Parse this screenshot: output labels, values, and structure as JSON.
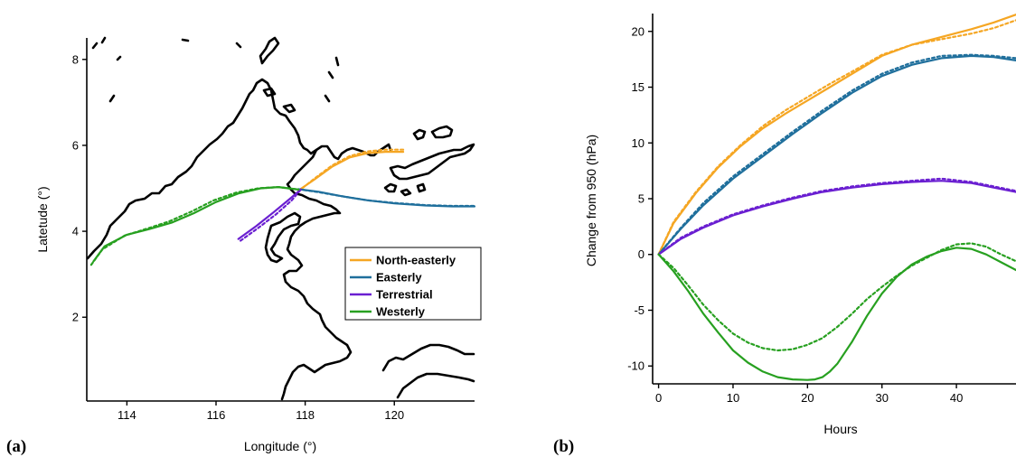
{
  "colors": {
    "North-easterly": "#f5a623",
    "Easterly": "#1f6f9c",
    "Terrestrial": "#6a1fd1",
    "Westerly": "#27a020",
    "coast": "#000000"
  },
  "chart_data": [
    {
      "type": "line",
      "panel_label": "(a)",
      "xlabel": "Longitude (°)",
      "ylabel": "Latetude (°)",
      "xlim": [
        113.1,
        121.8
      ],
      "ylim": [
        0.05,
        8.5
      ],
      "xticks": [
        114,
        116,
        118,
        120
      ],
      "yticks": [
        2,
        4,
        6,
        8
      ],
      "grid": false,
      "legend_position": "lower-right",
      "legend": [
        "North-easterly",
        "Easterly",
        "Terrestrial",
        "Westerly"
      ],
      "series": [
        {
          "name": "North-easterly",
          "style": "solid",
          "x": [
            117.85,
            118.2,
            118.6,
            119.0,
            119.4,
            119.8,
            120.2
          ],
          "y": [
            4.95,
            5.2,
            5.5,
            5.72,
            5.82,
            5.85,
            5.85
          ]
        },
        {
          "name": "North-easterly",
          "style": "dotted",
          "x": [
            117.85,
            118.2,
            118.6,
            119.0,
            119.4,
            119.8,
            120.2
          ],
          "y": [
            4.93,
            5.22,
            5.53,
            5.75,
            5.86,
            5.9,
            5.9
          ]
        },
        {
          "name": "Easterly",
          "style": "solid",
          "x": [
            117.85,
            118.3,
            118.8,
            119.4,
            120.0,
            120.7,
            121.3,
            121.8
          ],
          "y": [
            4.98,
            4.92,
            4.82,
            4.72,
            4.65,
            4.6,
            4.58,
            4.58
          ]
        },
        {
          "name": "Easterly",
          "style": "dotted",
          "x": [
            117.85,
            118.3,
            118.8,
            119.4,
            120.0,
            120.7,
            121.3,
            121.8
          ],
          "y": [
            4.98,
            4.91,
            4.82,
            4.72,
            4.66,
            4.61,
            4.59,
            4.59
          ]
        },
        {
          "name": "Terrestrial",
          "style": "solid",
          "x": [
            116.5,
            116.9,
            117.3,
            117.65,
            117.9
          ],
          "y": [
            3.82,
            4.12,
            4.45,
            4.75,
            4.97
          ]
        },
        {
          "name": "Terrestrial",
          "style": "dotted",
          "x": [
            116.55,
            116.95,
            117.35,
            117.7,
            117.9
          ],
          "y": [
            3.78,
            4.08,
            4.4,
            4.72,
            4.97
          ]
        },
        {
          "name": "Westerly",
          "style": "solid",
          "x": [
            113.25,
            113.5,
            114.0,
            114.5,
            115.0,
            115.5,
            116.0,
            116.5,
            117.0,
            117.4,
            117.85
          ],
          "y": [
            3.3,
            3.65,
            3.92,
            4.05,
            4.2,
            4.42,
            4.68,
            4.88,
            5.0,
            5.03,
            4.97
          ]
        },
        {
          "name": "Westerly",
          "style": "dotted",
          "x": [
            113.2,
            113.45,
            113.95,
            114.45,
            114.95,
            115.45,
            115.95,
            116.45,
            116.95,
            117.4,
            117.85
          ],
          "y": [
            3.22,
            3.58,
            3.9,
            4.06,
            4.23,
            4.46,
            4.72,
            4.9,
            5.0,
            5.03,
            4.97
          ]
        }
      ]
    },
    {
      "type": "line",
      "panel_label": "(b)",
      "xlabel": "Hours",
      "ylabel": "Change from 950 (hPa)",
      "xlim": [
        -0.8,
        48
      ],
      "ylim": [
        -11.6,
        21.6
      ],
      "xticks": [
        0,
        10,
        20,
        30,
        40
      ],
      "yticks": [
        -10,
        -5,
        0,
        5,
        10,
        15,
        20
      ],
      "grid": false,
      "series": [
        {
          "name": "North-easterly",
          "style": "solid",
          "x": [
            0,
            2,
            5,
            8,
            11,
            14,
            17,
            20,
            23,
            26,
            30,
            34,
            38,
            42,
            45,
            48
          ],
          "y": [
            0,
            2.8,
            5.5,
            7.8,
            9.7,
            11.3,
            12.6,
            13.8,
            15.0,
            16.2,
            17.8,
            18.8,
            19.5,
            20.2,
            20.8,
            21.5
          ]
        },
        {
          "name": "North-easterly",
          "style": "dotted",
          "x": [
            0,
            2,
            5,
            8,
            11,
            14,
            17,
            20,
            23,
            26,
            30,
            34,
            38,
            42,
            45,
            48
          ],
          "y": [
            0,
            2.9,
            5.6,
            7.9,
            9.8,
            11.5,
            12.9,
            14.1,
            15.3,
            16.4,
            17.9,
            18.8,
            19.3,
            19.8,
            20.3,
            21.0
          ]
        },
        {
          "name": "Easterly",
          "style": "solid",
          "x": [
            0,
            3,
            6,
            10,
            14,
            18,
            22,
            26,
            30,
            34,
            38,
            42,
            45,
            48
          ],
          "y": [
            0,
            2.3,
            4.4,
            6.8,
            8.8,
            10.8,
            12.7,
            14.5,
            16.0,
            17.0,
            17.6,
            17.8,
            17.7,
            17.4
          ]
        },
        {
          "name": "Easterly",
          "style": "dotted",
          "x": [
            0,
            3,
            6,
            10,
            14,
            18,
            22,
            26,
            30,
            34,
            38,
            42,
            45,
            48
          ],
          "y": [
            0,
            2.4,
            4.6,
            7.0,
            9.0,
            11.0,
            12.9,
            14.7,
            16.2,
            17.2,
            17.8,
            17.9,
            17.8,
            17.6
          ]
        },
        {
          "name": "Terrestrial",
          "style": "solid",
          "x": [
            0,
            3,
            6,
            10,
            14,
            18,
            22,
            26,
            30,
            34,
            38,
            42,
            45,
            48
          ],
          "y": [
            0,
            1.4,
            2.4,
            3.5,
            4.3,
            5.0,
            5.6,
            6.0,
            6.3,
            6.5,
            6.6,
            6.4,
            6.0,
            5.6
          ]
        },
        {
          "name": "Terrestrial",
          "style": "dotted",
          "x": [
            0,
            3,
            6,
            10,
            14,
            18,
            22,
            26,
            30,
            34,
            38,
            42,
            45,
            48
          ],
          "y": [
            0,
            1.5,
            2.5,
            3.6,
            4.4,
            5.1,
            5.7,
            6.1,
            6.4,
            6.6,
            6.8,
            6.5,
            6.1,
            5.7
          ]
        },
        {
          "name": "Westerly",
          "style": "solid",
          "x": [
            0,
            2,
            4,
            6,
            8,
            10,
            12,
            14,
            16,
            18,
            20,
            21,
            22,
            23,
            24,
            26,
            28,
            30,
            32,
            34,
            36,
            38,
            40,
            42,
            44,
            46,
            48
          ],
          "y": [
            0,
            -1.5,
            -3.3,
            -5.3,
            -7.0,
            -8.6,
            -9.7,
            -10.5,
            -11.0,
            -11.2,
            -11.25,
            -11.2,
            -11.0,
            -10.5,
            -9.8,
            -7.8,
            -5.5,
            -3.5,
            -2.0,
            -0.9,
            -0.2,
            0.3,
            0.6,
            0.5,
            0.0,
            -0.7,
            -1.4
          ]
        },
        {
          "name": "Westerly",
          "style": "dotted",
          "x": [
            0,
            2,
            4,
            6,
            8,
            10,
            12,
            14,
            16,
            18,
            20,
            22,
            24,
            26,
            28,
            30,
            32,
            34,
            36,
            38,
            40,
            42,
            44,
            46,
            48
          ],
          "y": [
            0,
            -1.2,
            -2.8,
            -4.5,
            -5.9,
            -7.1,
            -7.9,
            -8.4,
            -8.6,
            -8.5,
            -8.1,
            -7.5,
            -6.5,
            -5.3,
            -4.0,
            -2.9,
            -1.9,
            -1.0,
            -0.3,
            0.4,
            0.9,
            1.0,
            0.7,
            0.0,
            -0.6
          ]
        }
      ]
    }
  ]
}
